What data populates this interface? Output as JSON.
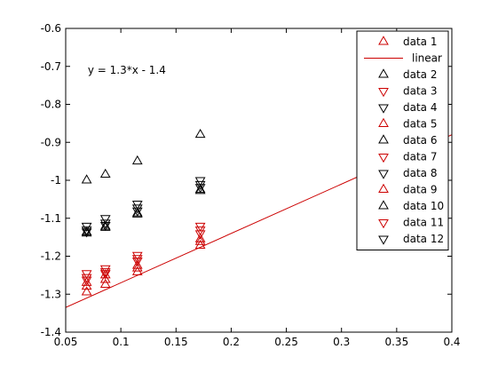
{
  "chart_data": {
    "type": "scatter",
    "title": "",
    "xlabel": "",
    "ylabel": "",
    "xlim": [
      0.05,
      0.4
    ],
    "ylim": [
      -1.4,
      -0.6
    ],
    "grid": false,
    "legend_position": "top-right",
    "x_ticks": [
      "0.05",
      "0.1",
      "0.15",
      "0.2",
      "0.25",
      "0.3",
      "0.35",
      "0.4"
    ],
    "y_ticks": [
      "-0.6",
      "-0.7",
      "-0.8",
      "-0.9",
      "-1",
      "-1.1",
      "-1.2",
      "-1.3",
      "-1.4"
    ],
    "annotation": {
      "text": "y = 1.3*x - 1.4",
      "x": 0.07,
      "y": -0.71
    },
    "colors": {
      "red": "#cc0000",
      "black": "#000000"
    },
    "series": [
      {
        "name": "data 1",
        "type": "scatter",
        "marker": "triangle-up",
        "color": "#cc0000",
        "x": [
          0.069,
          0.086,
          0.115,
          0.172
        ],
        "y": [
          -1.295,
          -1.275,
          -1.242,
          -1.172
        ]
      },
      {
        "name": "linear",
        "type": "line",
        "color": "#cc0000",
        "x": [
          0.05,
          0.4
        ],
        "y": [
          -1.335,
          -0.88
        ]
      },
      {
        "name": "data 2",
        "type": "scatter",
        "marker": "triangle-up",
        "color": "#000000",
        "x": [
          0.069,
          0.086,
          0.115,
          0.172
        ],
        "y": [
          -1.0,
          -0.985,
          -0.95,
          -0.88
        ]
      },
      {
        "name": "data 3",
        "type": "scatter",
        "marker": "triangle-down",
        "color": "#cc0000",
        "x": [
          0.069,
          0.086,
          0.115,
          0.172
        ],
        "y": [
          -1.245,
          -1.232,
          -1.197,
          -1.12
        ]
      },
      {
        "name": "data 4",
        "type": "scatter",
        "marker": "triangle-down",
        "color": "#000000",
        "x": [
          0.069,
          0.086,
          0.115,
          0.172
        ],
        "y": [
          -1.12,
          -1.1,
          -1.062,
          -1.0
        ]
      },
      {
        "name": "data 5",
        "type": "scatter",
        "marker": "triangle-up",
        "color": "#cc0000",
        "x": [
          0.069,
          0.086,
          0.115,
          0.172
        ],
        "y": [
          -1.28,
          -1.262,
          -1.232,
          -1.162
        ]
      },
      {
        "name": "data 6",
        "type": "scatter",
        "marker": "triangle-up",
        "color": "#000000",
        "x": [
          0.069,
          0.086,
          0.115,
          0.172
        ],
        "y": [
          -1.137,
          -1.122,
          -1.087,
          -1.025
        ]
      },
      {
        "name": "data 7",
        "type": "scatter",
        "marker": "triangle-down",
        "color": "#cc0000",
        "x": [
          0.069,
          0.086,
          0.115,
          0.172
        ],
        "y": [
          -1.255,
          -1.24,
          -1.205,
          -1.13
        ]
      },
      {
        "name": "data 8",
        "type": "scatter",
        "marker": "triangle-down",
        "color": "#000000",
        "x": [
          0.069,
          0.086,
          0.115,
          0.172
        ],
        "y": [
          -1.13,
          -1.112,
          -1.072,
          -1.01
        ]
      },
      {
        "name": "data 9",
        "type": "scatter",
        "marker": "triangle-up",
        "color": "#cc0000",
        "x": [
          0.069,
          0.086,
          0.115,
          0.172
        ],
        "y": [
          -1.27,
          -1.25,
          -1.225,
          -1.155
        ]
      },
      {
        "name": "data 10",
        "type": "scatter",
        "marker": "triangle-up",
        "color": "#000000",
        "x": [
          0.069,
          0.086,
          0.115,
          0.172
        ],
        "y": [
          -1.14,
          -1.125,
          -1.09,
          -1.028
        ]
      },
      {
        "name": "data 11",
        "type": "scatter",
        "marker": "triangle-down",
        "color": "#cc0000",
        "x": [
          0.069,
          0.086,
          0.115,
          0.172
        ],
        "y": [
          -1.262,
          -1.245,
          -1.212,
          -1.14
        ]
      },
      {
        "name": "data 12",
        "type": "scatter",
        "marker": "triangle-down",
        "color": "#000000",
        "x": [
          0.069,
          0.086,
          0.115,
          0.172
        ],
        "y": [
          -1.135,
          -1.118,
          -1.08,
          -1.018
        ]
      }
    ]
  }
}
